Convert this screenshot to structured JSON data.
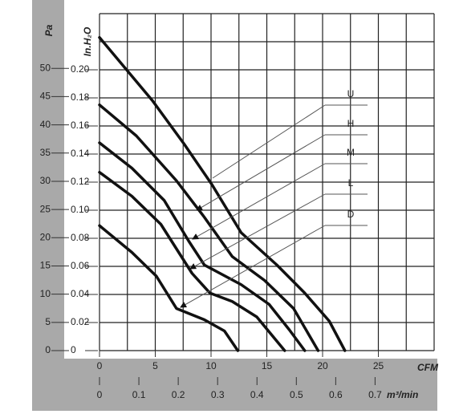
{
  "chart_data": {
    "type": "line",
    "xlabel": "CFM",
    "ylabel": "In.H₂O",
    "y2label": "Pa",
    "x2label": "m³/min",
    "xlim": [
      0,
      30
    ],
    "xticks": [
      0,
      5,
      10,
      15,
      20,
      25
    ],
    "xgrid": [
      0,
      2.5,
      5,
      7.5,
      10,
      12.5,
      15,
      17.5,
      20,
      22.5,
      25,
      27.5,
      30
    ],
    "ylim": [
      0,
      0.24
    ],
    "yticks": [
      0,
      0.02,
      0.04,
      0.06,
      0.08,
      {
        "value": 0.1,
        "label": "0.10"
      },
      0.12,
      0.14,
      0.16,
      0.18,
      {
        "value": 0.2,
        "label": "0.20"
      }
    ],
    "ygrid": [
      0,
      0.02,
      0.04,
      0.06,
      0.08,
      0.1,
      0.12,
      0.14,
      0.16,
      0.18,
      0.2,
      0.22,
      0.24
    ],
    "y2lim": [
      0,
      59.7
    ],
    "y2ticks": [
      0,
      5,
      10,
      15,
      20,
      25,
      30,
      35,
      40,
      45,
      50
    ],
    "x2lim": [
      0,
      0.85
    ],
    "x2ticks": [
      0,
      0.1,
      0.2,
      0.3,
      0.4,
      0.5,
      0.6,
      0.7
    ],
    "grid": true,
    "color": "#111111",
    "series": [
      {
        "name": "U",
        "x": [
          0,
          4.75,
          7.6,
          10.1,
          12.7,
          15.9,
          18.4,
          20.6,
          22
        ],
        "values": [
          0.223,
          0.178,
          0.147,
          0.118,
          0.084,
          0.061,
          0.041,
          0.021,
          0
        ]
      },
      {
        "name": "H",
        "x": [
          0,
          3.3,
          6.9,
          9.4,
          11.9,
          14.8,
          17.4,
          19.6
        ],
        "values": [
          0.175,
          0.153,
          0.121,
          0.095,
          0.067,
          0.05,
          0.03,
          0
        ]
      },
      {
        "name": "M",
        "x": [
          0,
          2.9,
          5.8,
          8,
          9.4,
          12.7,
          15.2,
          17,
          18.4
        ],
        "values": [
          0.148,
          0.13,
          0.107,
          0.078,
          0.061,
          0.047,
          0.033,
          0.015,
          0
        ]
      },
      {
        "name": "L",
        "x": [
          0,
          2.9,
          5.5,
          8.3,
          9.9,
          11.9,
          14.1,
          16.6
        ],
        "values": [
          0.127,
          0.11,
          0.09,
          0.055,
          0.041,
          0.035,
          0.024,
          0
        ]
      },
      {
        "name": "D",
        "x": [
          0,
          2.9,
          5.1,
          6.9,
          9.4,
          11.2,
          12.4
        ],
        "values": [
          0.089,
          0.07,
          0.053,
          0.03,
          0.022,
          0.014,
          0
        ]
      }
    ]
  }
}
